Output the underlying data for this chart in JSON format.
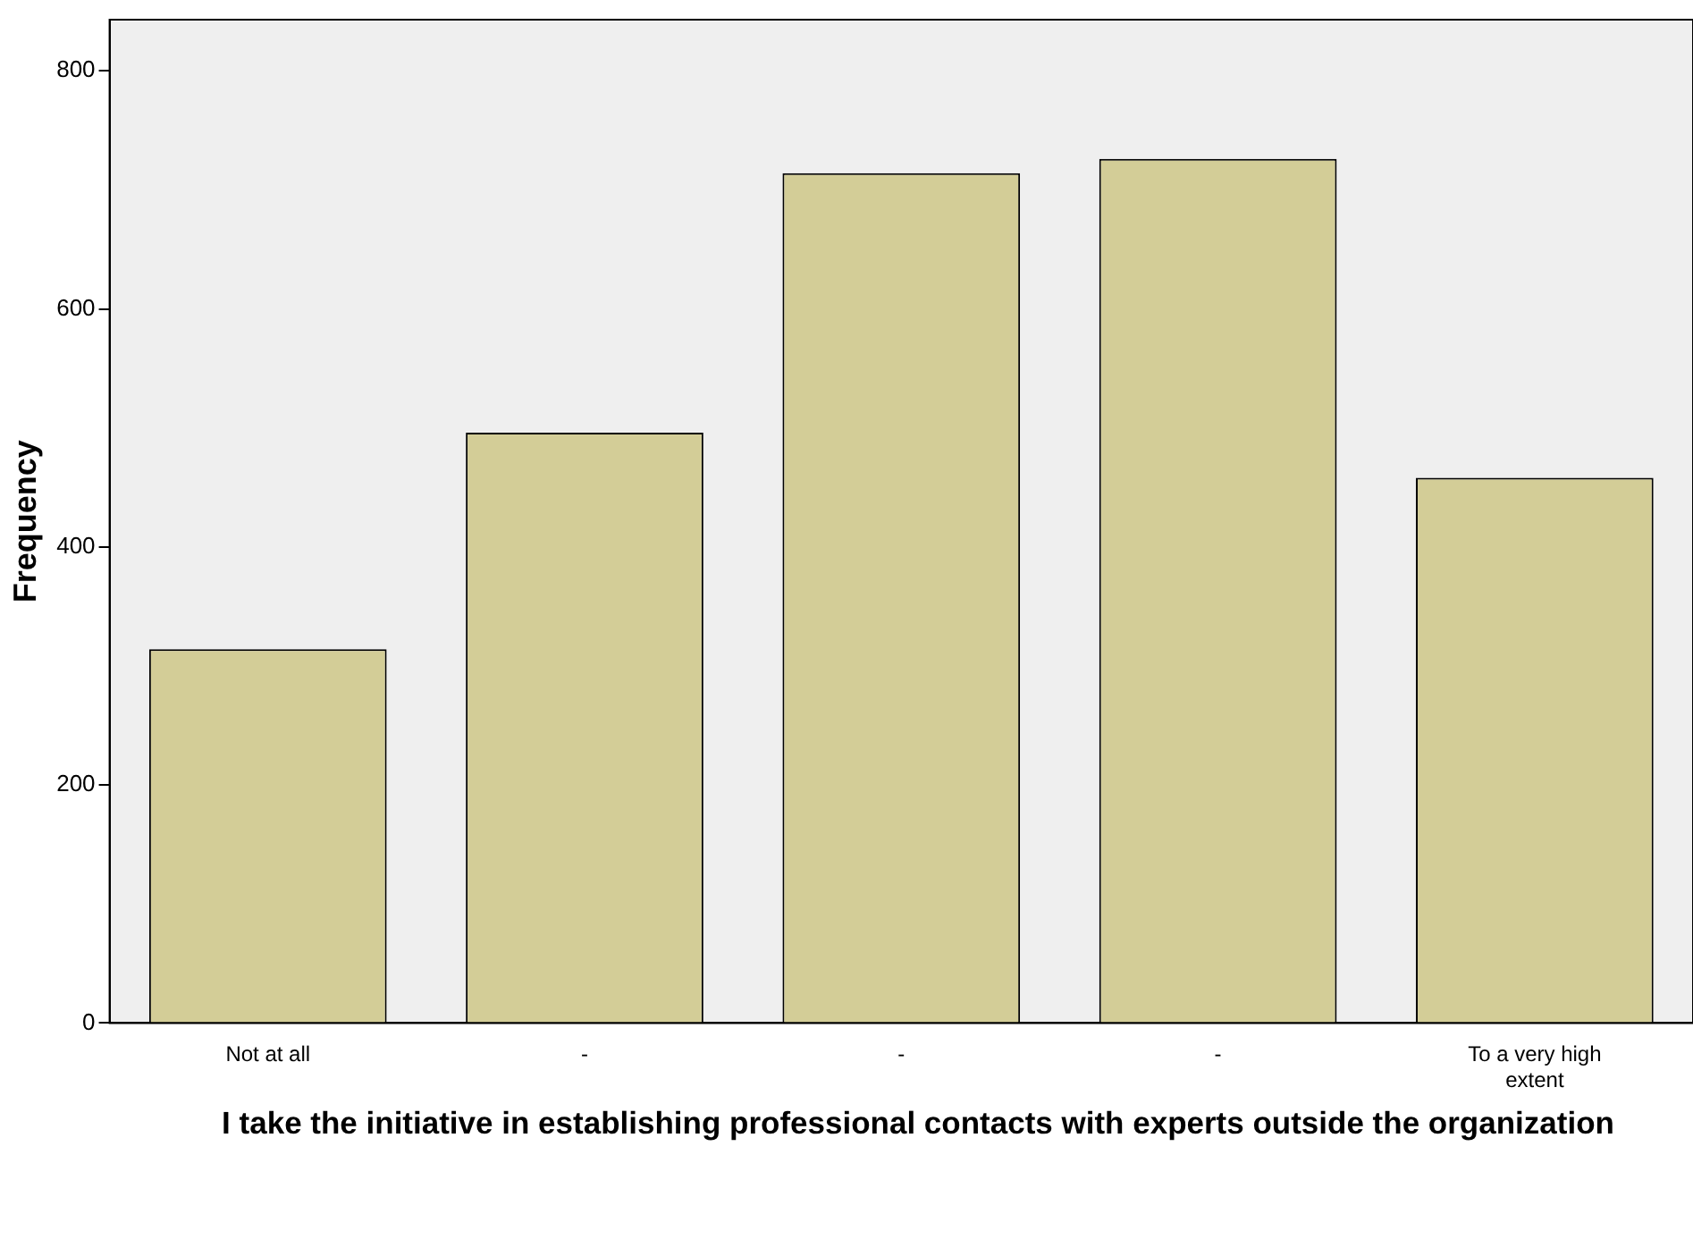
{
  "chart_data": {
    "type": "bar",
    "xlabel": "I take the initiative in establishing professional contacts with experts outside the organization",
    "ylabel": "Frequency",
    "categories": [
      "Not at all",
      "-",
      "-",
      "-",
      "To a very high extent"
    ],
    "values": [
      314,
      496,
      714,
      726,
      458
    ],
    "color": "#d3cd97",
    "ylim": [
      0,
      843
    ],
    "yticks": [
      0,
      200,
      400,
      600,
      800
    ],
    "grid": false,
    "legend": false
  }
}
